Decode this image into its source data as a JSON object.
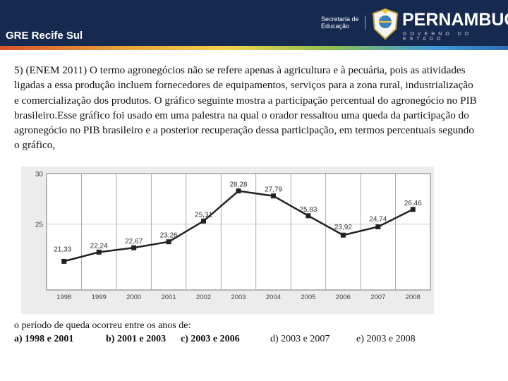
{
  "header": {
    "title": "GRE Recife Sul",
    "secretaria_line1": "Secretaria de",
    "secretaria_line2": "Educação",
    "state_name": "PERNAMBUCO",
    "state_sub": "GOVERNO DO ESTADO"
  },
  "question": {
    "text": "5) (ENEM 2011) O termo agronegócios não se refere apenas à agricultura e à pecuária, pois as atividades ligadas a essa produção incluem fornecedores de equipamentos, serviços para a zona rural, industrialização e comercialização dos produtos. O gráfico seguinte mostra a participação percentual do agronegócio no PIB brasileiro.Esse gráfico foi usado em uma palestra na qual o orador ressaltou uma queda da participação do agronegócio no PIB brasileiro e a posterior recuperação dessa participação, em termos percentuais segundo o gráfico,",
    "prompt": "o período de queda ocorreu entre os anos de:",
    "options": {
      "a": "a) 1998 e 2001",
      "b": "b) 2001 e 2003",
      "c": "c) 2003 e 2006",
      "d": "d) 2003 e 2007",
      "e": "e) 2003 e 2008"
    }
  },
  "chart_data": {
    "type": "line",
    "x": [
      "1998",
      "1999",
      "2000",
      "2001",
      "2002",
      "2003",
      "2004",
      "2005",
      "2006",
      "2007",
      "2008"
    ],
    "values": [
      21.33,
      22.24,
      22.67,
      23.26,
      25.31,
      28.28,
      27.79,
      25.83,
      23.92,
      24.74,
      26.46
    ],
    "labels": [
      "21,33",
      "22,24",
      "22,67",
      "23,26",
      "25,31",
      "28,28",
      "27,79",
      "25,83",
      "23,92",
      "24,74",
      "26,46"
    ],
    "yticks": [
      "30",
      "25"
    ],
    "ylim": [
      18.5,
      30
    ],
    "grid": true
  }
}
